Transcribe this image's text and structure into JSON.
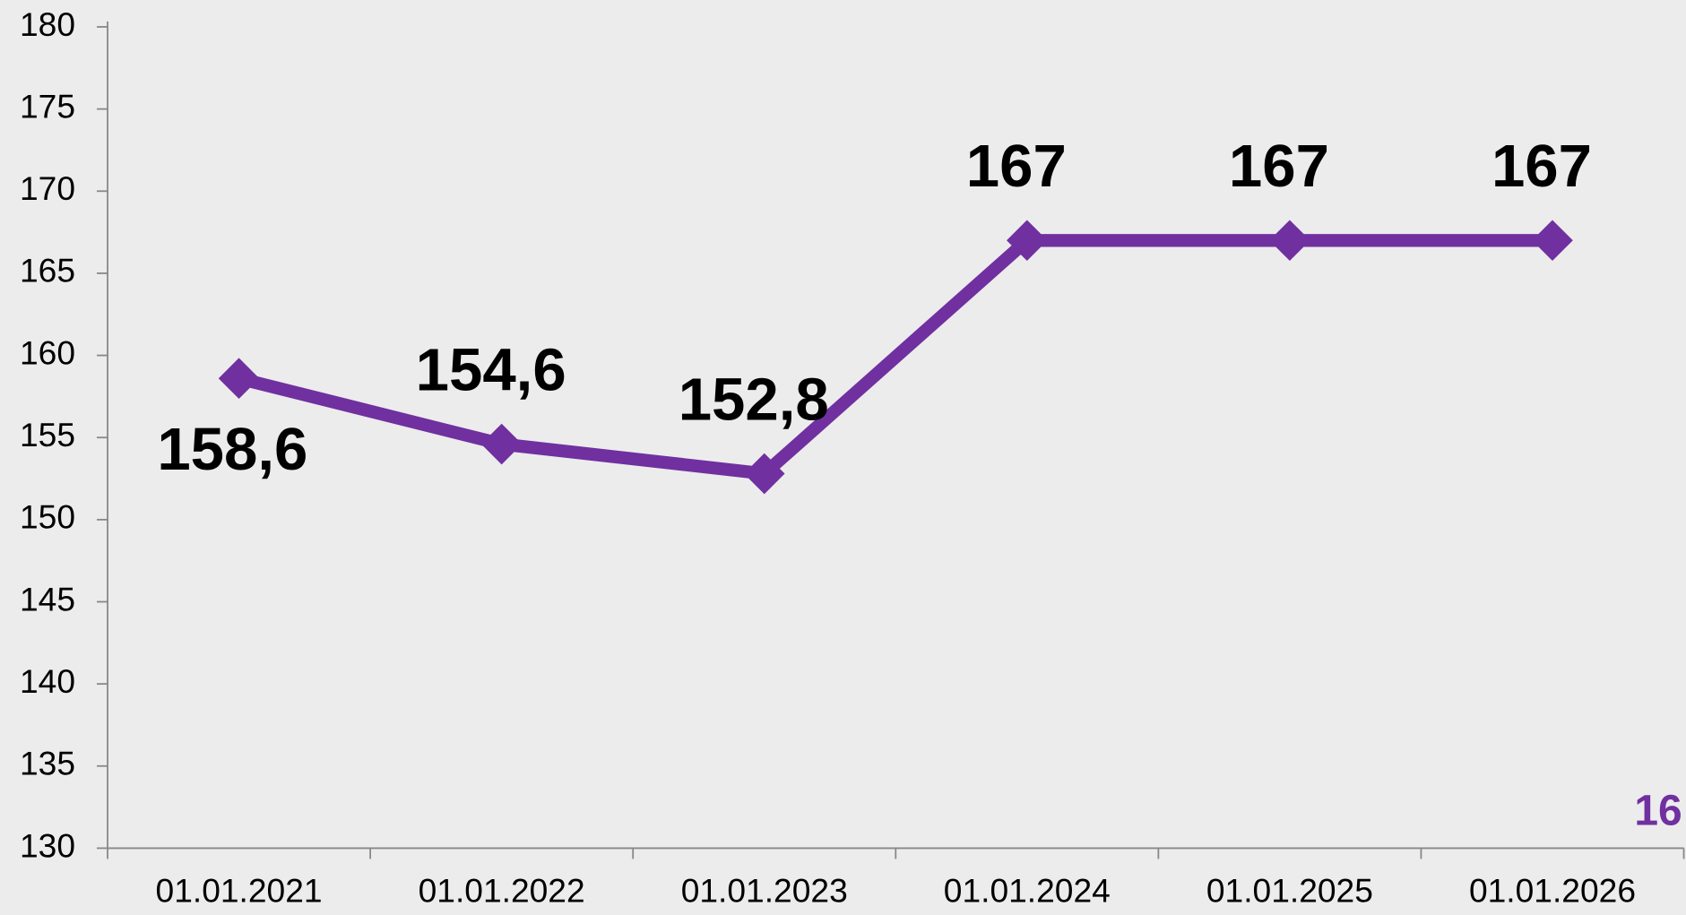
{
  "chart_data": {
    "type": "line",
    "categories": [
      "01.01.2021",
      "01.01.2022",
      "01.01.2023",
      "01.01.2024",
      "01.01.2025",
      "01.01.2026"
    ],
    "values": [
      158.6,
      154.6,
      152.8,
      167,
      167,
      167
    ],
    "value_labels": [
      "158,6",
      "154,6",
      "152,8",
      "167",
      "167",
      "167"
    ],
    "color": "#7030a0",
    "ylim": [
      130,
      180
    ],
    "yticks": [
      130,
      135,
      140,
      145,
      150,
      155,
      160,
      165,
      170,
      175,
      180
    ],
    "annotation": "16"
  }
}
